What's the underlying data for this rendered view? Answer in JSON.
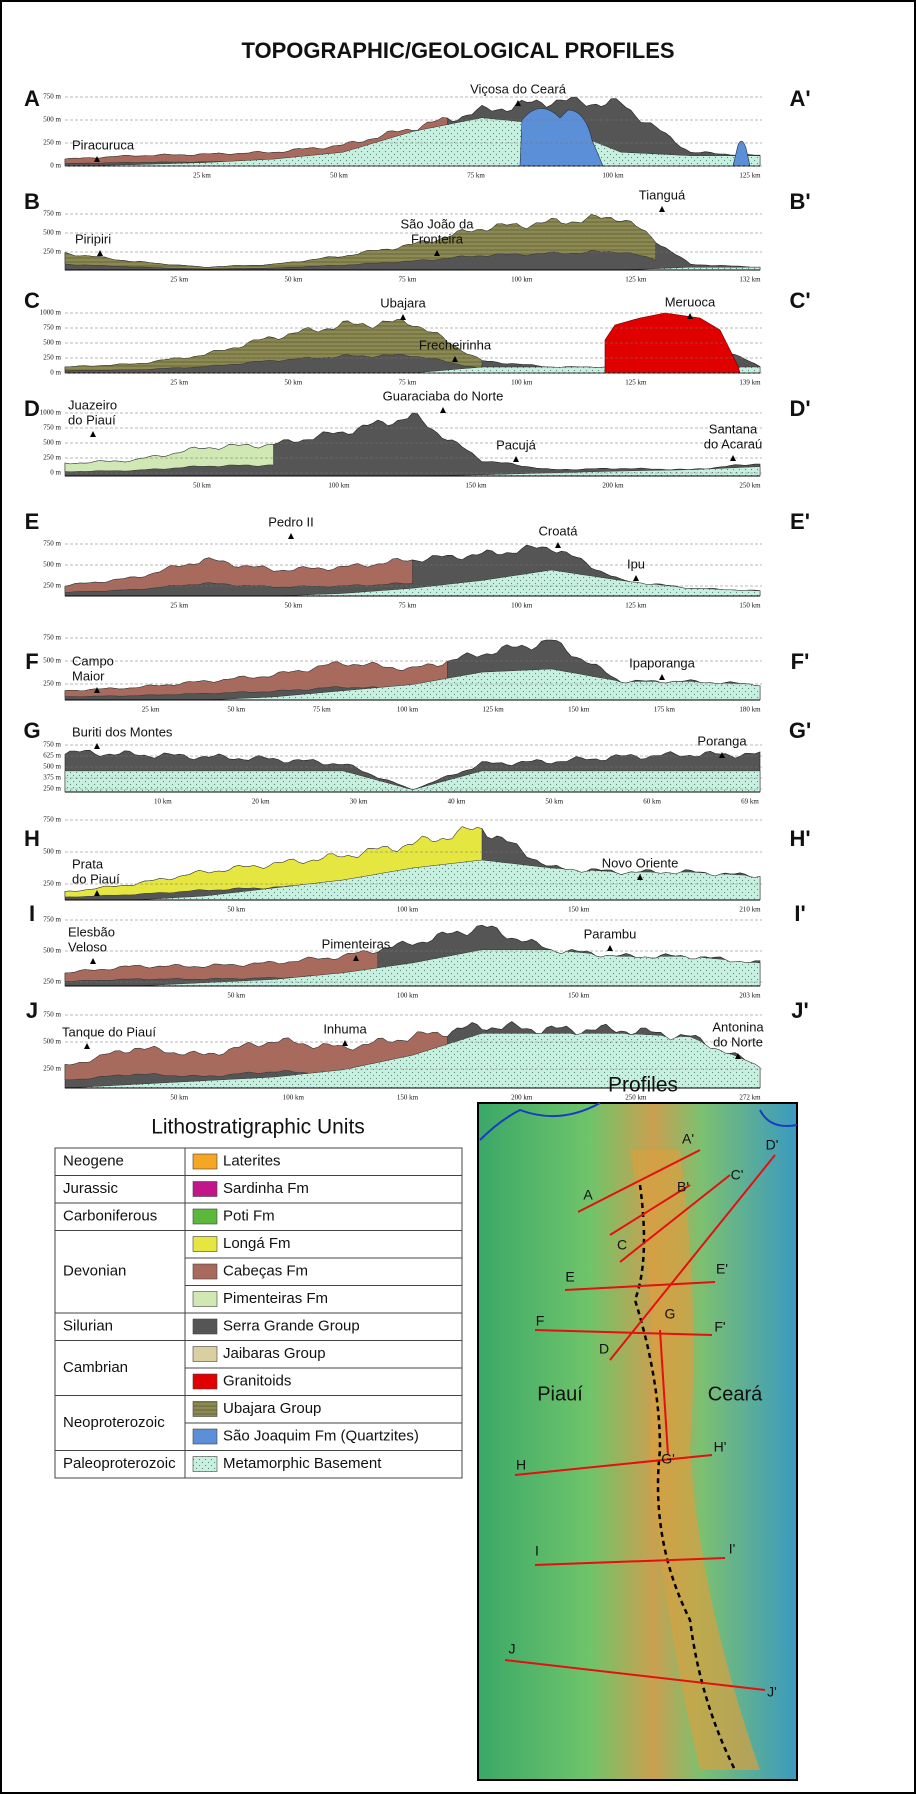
{
  "title": "TOPOGRAPHIC/GEOLOGICAL PROFILES",
  "profiles": [
    {
      "start": "A",
      "end": "A'",
      "y_labels": [
        "750 m",
        "500 m",
        "250 m",
        "0 m"
      ],
      "x_labels": [
        "25 km",
        "50 km",
        "75 km",
        "100 km",
        "125 km"
      ],
      "places": [
        [
          "Piracuruca"
        ],
        [
          "Viçosa do Ceará"
        ]
      ]
    },
    {
      "start": "B",
      "end": "B'",
      "y_labels": [
        "750 m",
        "500 m",
        "250 m"
      ],
      "x_labels": [
        "25 km",
        "50 km",
        "75 km",
        "100 km",
        "125 km",
        "132 km"
      ],
      "places": [
        [
          "Piripiri"
        ],
        [
          "São João da",
          "Fronteira"
        ],
        [
          "Tianguá"
        ]
      ]
    },
    {
      "start": "C",
      "end": "C'",
      "y_labels": [
        "1000 m",
        "750 m",
        "500 m",
        "250 m",
        "0 m"
      ],
      "x_labels": [
        "25 km",
        "50 km",
        "75 km",
        "100 km",
        "125 km",
        "139 km"
      ],
      "places": [
        [
          "Ubajara"
        ],
        [
          "Frecheirinha"
        ],
        [
          "Meruoca"
        ]
      ]
    },
    {
      "start": "D",
      "end": "D'",
      "y_labels": [
        "1000 m",
        "750 m",
        "500 m",
        "250 m",
        "0 m"
      ],
      "x_labels": [
        "50 km",
        "100 km",
        "150 km",
        "200 km",
        "250 km"
      ],
      "places": [
        [
          "Juazeiro",
          "do Piauí"
        ],
        [
          "Guaraciaba do Norte"
        ],
        [
          "Pacujá"
        ],
        [
          "Santana",
          "do Acaraú"
        ]
      ]
    },
    {
      "start": "E",
      "end": "E'",
      "y_labels": [
        "750 m",
        "500 m",
        "250 m"
      ],
      "x_labels": [
        "25 km",
        "50 km",
        "75 km",
        "100 km",
        "125 km",
        "150 km"
      ],
      "places": [
        [
          "Pedro II"
        ],
        [
          "Croatá"
        ],
        [
          "Ipu"
        ]
      ]
    },
    {
      "start": "F",
      "end": "F'",
      "y_labels": [
        "750 m",
        "500 m",
        "250 m"
      ],
      "x_labels": [
        "25 km",
        "50 km",
        "75 km",
        "100 km",
        "125 km",
        "150 km",
        "175 km",
        "180 km"
      ],
      "places": [
        [
          "Campo",
          "Maior"
        ],
        [
          "Ipaporanga"
        ]
      ]
    },
    {
      "start": "G",
      "end": "G'",
      "y_labels": [
        "750 m",
        "625 m",
        "500 m",
        "375 m",
        "250 m"
      ],
      "x_labels": [
        "10 km",
        "20 km",
        "30 km",
        "40 km",
        "50 km",
        "60 km",
        "69 km"
      ],
      "places": [
        [
          "Buriti dos Montes"
        ],
        [
          "Poranga"
        ]
      ]
    },
    {
      "start": "H",
      "end": "H'",
      "y_labels": [
        "750 m",
        "500 m",
        "250 m"
      ],
      "x_labels": [
        "50 km",
        "100 km",
        "150 km",
        "210 km"
      ],
      "places": [
        [
          "Prata",
          "do Piauí"
        ],
        [
          "Novo Oriente"
        ]
      ]
    },
    {
      "start": "I",
      "end": "I'",
      "y_labels": [
        "750 m",
        "500 m",
        "250 m"
      ],
      "x_labels": [
        "50 km",
        "100 km",
        "150 km",
        "203 km"
      ],
      "places": [
        [
          "Elesbão",
          "Veloso"
        ],
        [
          "Pimenteiras"
        ],
        [
          "Parambu"
        ]
      ]
    },
    {
      "start": "J",
      "end": "J'",
      "y_labels": [
        "750 m",
        "500 m",
        "250 m"
      ],
      "x_labels": [
        "50 km",
        "100 km",
        "150 km",
        "200 km",
        "250 km",
        "272 km"
      ],
      "places": [
        [
          "Tanque do Piauí"
        ],
        [
          "Inhuma"
        ],
        [
          "Antonina",
          "do Norte"
        ]
      ]
    }
  ],
  "legend": {
    "title": "Lithostratigraphic Units",
    "rows": [
      {
        "period": "Neogene",
        "units": [
          {
            "name": "Laterites",
            "color": "#f5a623"
          }
        ]
      },
      {
        "period": "Jurassic",
        "units": [
          {
            "name": "Sardinha Fm",
            "color": "#c0168a"
          }
        ]
      },
      {
        "period": "Carboniferous",
        "units": [
          {
            "name": "Poti Fm",
            "color": "#5cb83a"
          }
        ]
      },
      {
        "period": "Devonian",
        "units": [
          {
            "name": "Longá Fm",
            "color": "#e6e640"
          },
          {
            "name": "Cabeças Fm",
            "color": "#a86a5c"
          },
          {
            "name": "Pimenteiras Fm",
            "color": "#cfe8b4"
          }
        ]
      },
      {
        "period": "Silurian",
        "units": [
          {
            "name": "Serra Grande Group",
            "color": "#555555"
          }
        ]
      },
      {
        "period": "Cambrian",
        "units": [
          {
            "name": "Jaibaras Group",
            "color": "#d9cfa0"
          },
          {
            "name": "Granitoids",
            "color": "#e00000"
          }
        ]
      },
      {
        "period": "Neoproterozoic",
        "units": [
          {
            "name": "Ubajara Group",
            "color": "#8c8a52"
          },
          {
            "name": "São Joaquim Fm (Quartzites)",
            "color": "#5b8fd8"
          }
        ]
      },
      {
        "period": "Paleoproterozoic",
        "units": [
          {
            "name": "Metamorphic Basement",
            "color": "#c8f0e0"
          }
        ]
      }
    ]
  },
  "map": {
    "title": "Profiles",
    "labels": [
      "A'",
      "B'",
      "C'",
      "D'",
      "A",
      "C",
      "E",
      "E'",
      "G",
      "F",
      "F'",
      "D",
      "G'",
      "H",
      "H'",
      "I",
      "I'",
      "J",
      "J'"
    ],
    "states": [
      "Piauí",
      "Ceará"
    ]
  }
}
